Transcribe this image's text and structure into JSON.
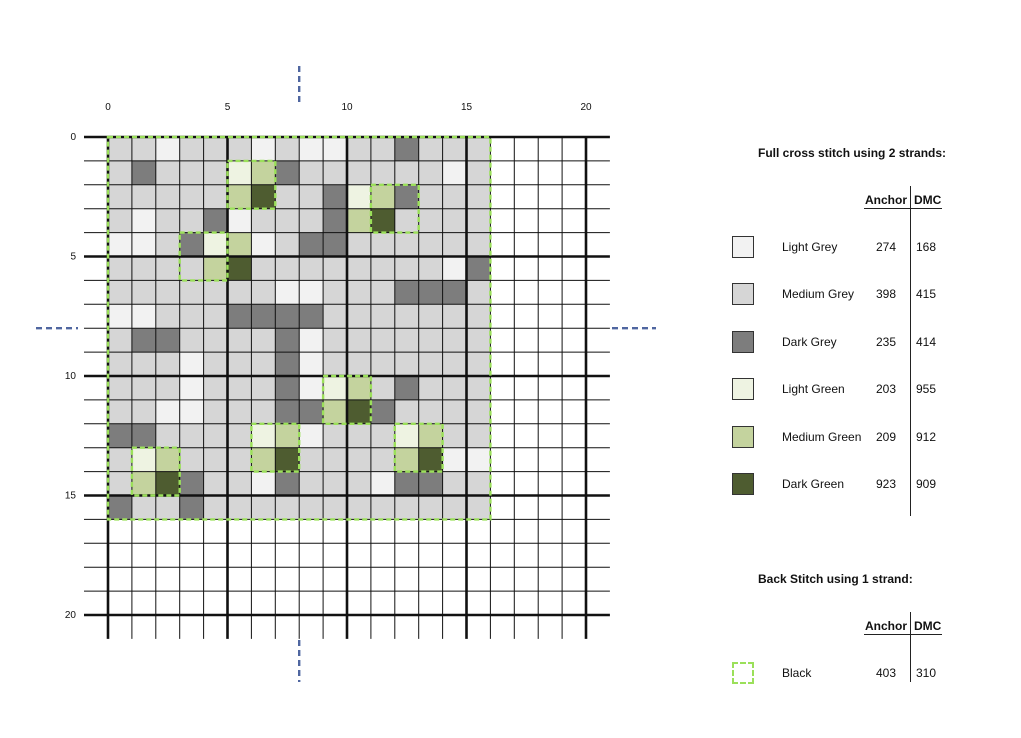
{
  "chart": {
    "axis_labels_top": [
      "0",
      "5",
      "10",
      "15",
      "20"
    ],
    "axis_labels_left": [
      "0",
      "5",
      "10",
      "15",
      "20"
    ],
    "palette": {
      "W": "#ffffff",
      "L": "#f2f2f2",
      "M": "#d6d6d6",
      "D": "#7d7d7d",
      "g": "#eef3e2",
      "m": "#c4d39e",
      "d": "#4e5c30"
    },
    "rows": [
      "MMLMMMLMLLMMDMMM",
      "MDMMMgmDMMMMMMLM",
      "MMMMMmdMMDgmDMMM",
      "MLMMDLMMMDmdMMMM",
      "LLMDgmLMDDMMMMMM",
      "MMMMmdMMMMMMMMLD",
      "MMMMMMMLLMMMDDDM",
      "LLMMMDDDDMMMMMMM",
      "MDDMMMMDLMMMMMMM",
      "MMMLMMMDLMMMMMMM",
      "MMMLMMMDLgmMDMMM",
      "MMLLMMMDDmdDMMMM",
      "DDMMMMgmLMMMgmMM",
      "MgmMMMmdMMMMmdLL",
      "MmdDMMLDMMMLDDMM",
      "DMMDMMMMMMMMMMMM"
    ],
    "backstitch_boxes": [
      {
        "row": 1,
        "col": 5
      },
      {
        "row": 2,
        "col": 11
      },
      {
        "row": 4,
        "col": 3
      },
      {
        "row": 10,
        "col": 9
      },
      {
        "row": 12,
        "col": 6
      },
      {
        "row": 12,
        "col": 12
      },
      {
        "row": 13,
        "col": 1
      }
    ],
    "backstitch_outline": {
      "rows": 16,
      "cols": 16
    },
    "backstitch_color": "#9be05a",
    "center_marker_color": "#4f66a0"
  },
  "legend": {
    "full_title": "Full cross stitch using 2 strands:",
    "back_title": "Back Stitch using 1 strand:",
    "col_anchor": "Anchor",
    "col_dmc": "DMC",
    "full_items": [
      {
        "name": "Light Grey",
        "anchor": "274",
        "dmc": "168",
        "color": "#f2f2f2"
      },
      {
        "name": "Medium Grey",
        "anchor": "398",
        "dmc": "415",
        "color": "#d6d6d6"
      },
      {
        "name": "Dark Grey",
        "anchor": "235",
        "dmc": "414",
        "color": "#7d7d7d"
      },
      {
        "name": "Light Green",
        "anchor": "203",
        "dmc": "955",
        "color": "#eef3e2"
      },
      {
        "name": "Medium Green",
        "anchor": "209",
        "dmc": "912",
        "color": "#c4d39e"
      },
      {
        "name": "Dark Green",
        "anchor": "923",
        "dmc": "909",
        "color": "#4e5c30"
      }
    ],
    "back_items": [
      {
        "name": "Black",
        "anchor": "403",
        "dmc": "310"
      }
    ]
  }
}
